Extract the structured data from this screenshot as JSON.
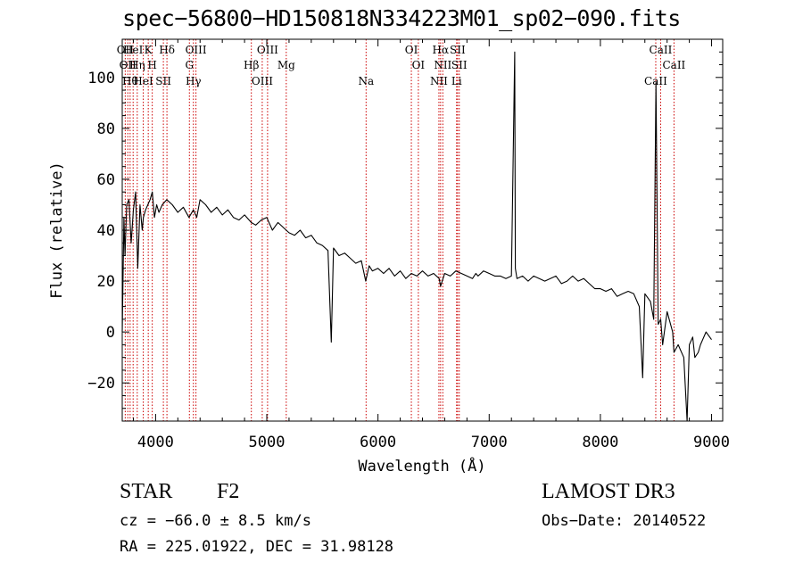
{
  "chart_data": {
    "type": "line",
    "title": "spec−56800−HD150818N334223M01_sp02−090.fits",
    "xlabel": "Wavelength (Å)",
    "ylabel": "Flux (relative)",
    "xlim": [
      3700,
      9100
    ],
    "ylim": [
      -35,
      115
    ],
    "x_ticks": [
      4000,
      5000,
      6000,
      7000,
      8000,
      9000
    ],
    "y_ticks": [
      -20,
      0,
      20,
      40,
      60,
      80,
      100
    ],
    "grid": false,
    "series": [
      {
        "color": "#000000",
        "x": [
          3700,
          3715,
          3725,
          3740,
          3760,
          3780,
          3800,
          3820,
          3840,
          3860,
          3880,
          3890,
          3910,
          3930,
          3950,
          3970,
          3990,
          4010,
          4030,
          4060,
          4100,
          4150,
          4200,
          4250,
          4300,
          4340,
          4370,
          4400,
          4450,
          4500,
          4550,
          4600,
          4650,
          4700,
          4750,
          4800,
          4860,
          4900,
          4950,
          5000,
          5050,
          5100,
          5150,
          5200,
          5250,
          5300,
          5350,
          5400,
          5450,
          5500,
          5550,
          5580,
          5600,
          5650,
          5700,
          5750,
          5800,
          5850,
          5890,
          5920,
          5950,
          6000,
          6050,
          6100,
          6150,
          6200,
          6250,
          6300,
          6350,
          6400,
          6450,
          6500,
          6550,
          6563,
          6600,
          6650,
          6700,
          6750,
          6800,
          6850,
          6880,
          6900,
          6950,
          7000,
          7050,
          7100,
          7150,
          7200,
          7230,
          7235,
          7250,
          7300,
          7350,
          7400,
          7450,
          7500,
          7550,
          7600,
          7650,
          7700,
          7750,
          7800,
          7850,
          7900,
          7950,
          8000,
          8050,
          8100,
          8150,
          8200,
          8250,
          8300,
          8350,
          8380,
          8400,
          8450,
          8480,
          8500,
          8520,
          8542,
          8560,
          8600,
          8650,
          8662,
          8700,
          8750,
          8780,
          8800,
          8830,
          8850,
          8880,
          8900,
          8950,
          9000
        ],
        "y": [
          0,
          45,
          30,
          50,
          52,
          35,
          48,
          55,
          25,
          50,
          40,
          45,
          48,
          50,
          52,
          55,
          45,
          50,
          47,
          50,
          52,
          50,
          47,
          49,
          45,
          48,
          45,
          52,
          50,
          47,
          49,
          46,
          48,
          45,
          44,
          46,
          43,
          42,
          44,
          45,
          40,
          43,
          41,
          39,
          38,
          40,
          37,
          38,
          35,
          34,
          32,
          -4,
          33,
          30,
          31,
          29,
          27,
          28,
          20,
          26,
          24,
          25,
          23,
          25,
          22,
          24,
          21,
          23,
          22,
          24,
          22,
          23,
          21,
          18,
          23,
          22,
          24,
          23,
          22,
          21,
          23,
          22,
          24,
          23,
          22,
          22,
          21,
          22,
          110,
          25,
          21,
          22,
          20,
          22,
          21,
          20,
          21,
          22,
          19,
          20,
          22,
          20,
          21,
          19,
          17,
          17,
          16,
          17,
          14,
          15,
          16,
          15,
          10,
          -18,
          15,
          12,
          5,
          98,
          3,
          5,
          -5,
          8,
          0,
          -8,
          -5,
          -10,
          -35,
          -5,
          -2,
          -10,
          -8,
          -5,
          0,
          -3
        ]
      }
    ],
    "line_markers": [
      {
        "x": 3727,
        "label": "OII"
      },
      {
        "x": 3750,
        "label": "OII"
      },
      {
        "x": 3771,
        "label": "Hθ"
      },
      {
        "x": 3798,
        "label": "HeI"
      },
      {
        "x": 3835,
        "label": "Hη"
      },
      {
        "x": 3889,
        "label": "HeI"
      },
      {
        "x": 3934,
        "label": "K"
      },
      {
        "x": 3970,
        "label": "H"
      },
      {
        "x": 4070,
        "label": "SII"
      },
      {
        "x": 4102,
        "label": "Hδ"
      },
      {
        "x": 4304,
        "label": "G"
      },
      {
        "x": 4340,
        "label": "Hγ"
      },
      {
        "x": 4363,
        "label": "OIII"
      },
      {
        "x": 4861,
        "label": "Hβ"
      },
      {
        "x": 4959,
        "label": "OIII"
      },
      {
        "x": 5007,
        "label": "OIII"
      },
      {
        "x": 5175,
        "label": "Mg"
      },
      {
        "x": 5893,
        "label": "Na"
      },
      {
        "x": 6300,
        "label": "OI"
      },
      {
        "x": 6363,
        "label": "OI"
      },
      {
        "x": 6548,
        "label": "NII"
      },
      {
        "x": 6563,
        "label": "Hα"
      },
      {
        "x": 6583,
        "label": "NII"
      },
      {
        "x": 6707,
        "label": "Li"
      },
      {
        "x": 6716,
        "label": "SII"
      },
      {
        "x": 6731,
        "label": "SII"
      },
      {
        "x": 8498,
        "label": "CaII"
      },
      {
        "x": 8542,
        "label": "CaII"
      },
      {
        "x": 8662,
        "label": "CaII"
      }
    ]
  },
  "info": {
    "class_type": "STAR",
    "subclass": "F2",
    "survey": "LAMOST DR3",
    "cz": "cz = −66.0 ± 8.5 km/s",
    "obs_date": "Obs−Date: 20140522",
    "radec": "RA = 225.01922, DEC =  31.98128"
  }
}
